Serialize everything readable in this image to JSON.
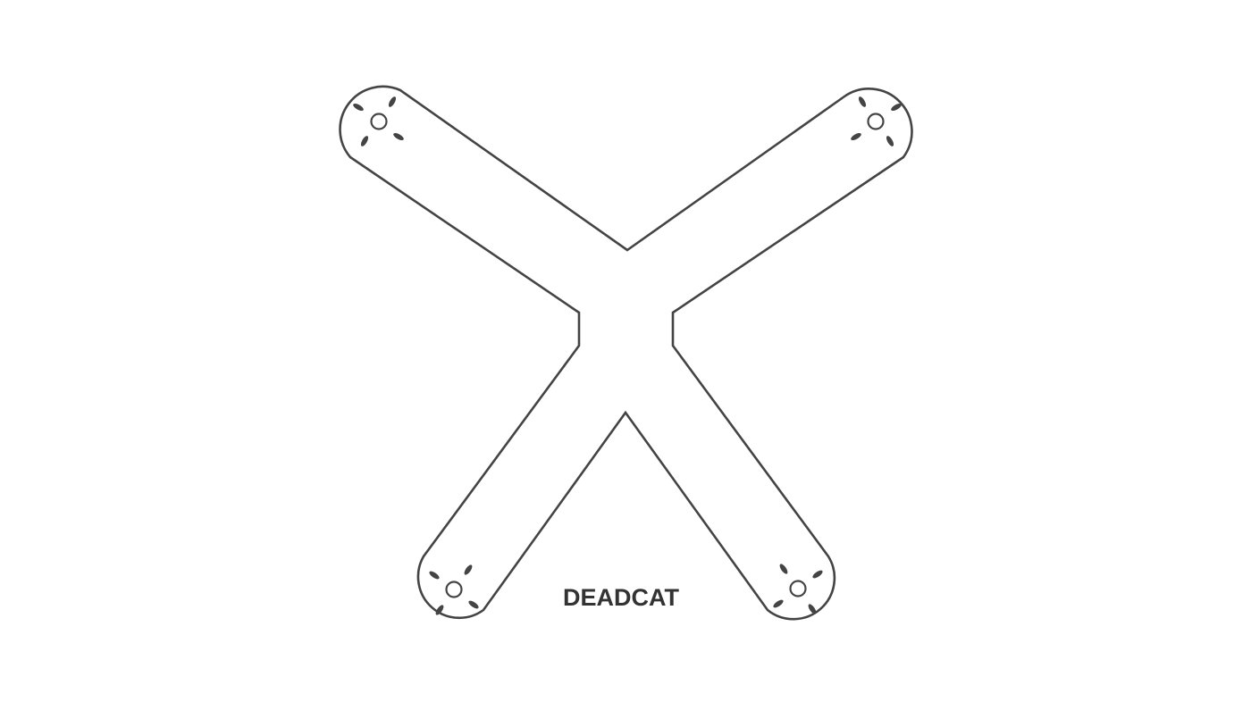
{
  "diagram": {
    "label": "DEADCAT",
    "motor_mounts": [
      {
        "position": "top-left",
        "slots": 4
      },
      {
        "position": "top-right",
        "slots": 4
      },
      {
        "position": "bottom-left",
        "slots": 4
      },
      {
        "position": "bottom-right",
        "slots": 4
      }
    ],
    "colors": {
      "outline": "#444444",
      "text": "#333333",
      "background": "#ffffff"
    }
  }
}
